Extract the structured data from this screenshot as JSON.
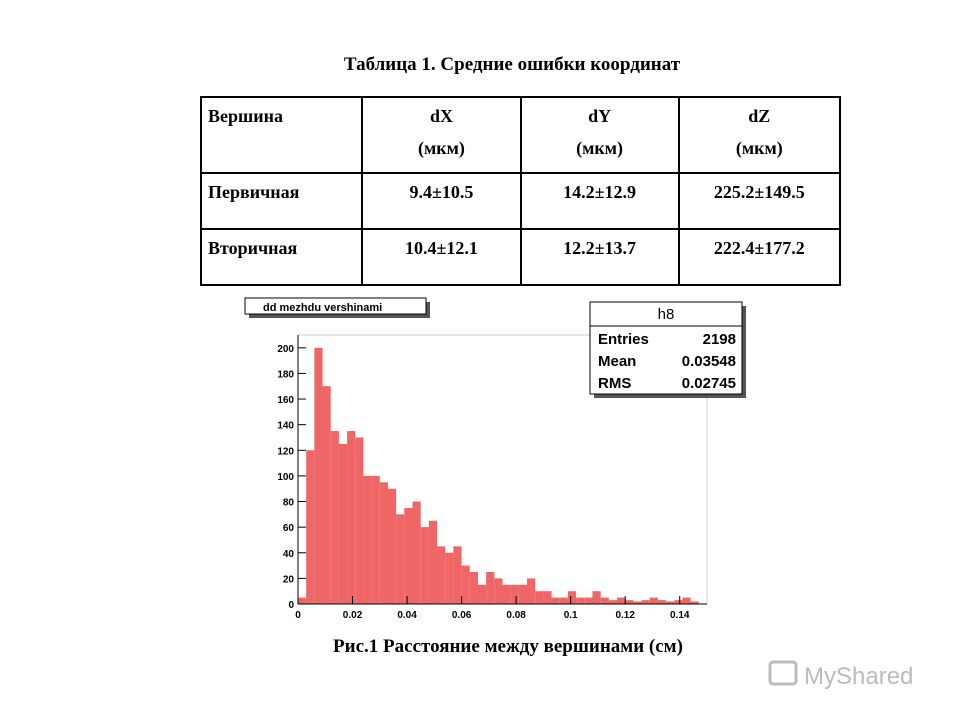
{
  "title": "Таблица 1. Средние ошибки координат",
  "table": {
    "header": [
      [
        "Вершина"
      ],
      [
        "dX",
        "(мкм)"
      ],
      [
        "dY",
        "(мкм)"
      ],
      [
        "dZ",
        "(мкм)"
      ]
    ],
    "rows": [
      [
        "Первичная",
        "9.4±10.5",
        "14.2±12.9",
        "225.2±149.5"
      ],
      [
        "Вторичная",
        "10.4±12.1",
        "12.2±13.7",
        "222.4±177.2"
      ]
    ]
  },
  "chart_data": {
    "type": "histogram",
    "title": "dd mezhdu vershinami",
    "color": "#ee6666",
    "bins": [
      0,
      0.003,
      0.006,
      0.009,
      0.012,
      0.015,
      0.018,
      0.021,
      0.024,
      0.027,
      0.03,
      0.033,
      0.036,
      0.039,
      0.042,
      0.045,
      0.048,
      0.051,
      0.054,
      0.057,
      0.06,
      0.063,
      0.066,
      0.069,
      0.072,
      0.075,
      0.078,
      0.081,
      0.084,
      0.087,
      0.09,
      0.093,
      0.096,
      0.099,
      0.102,
      0.105,
      0.108,
      0.111,
      0.114,
      0.117,
      0.12,
      0.123,
      0.126,
      0.129,
      0.132,
      0.135,
      0.138,
      0.141,
      0.144,
      0.147,
      0.15
    ],
    "counts": [
      5,
      120,
      200,
      170,
      135,
      125,
      135,
      130,
      100,
      100,
      95,
      90,
      70,
      75,
      80,
      60,
      65,
      45,
      40,
      45,
      30,
      25,
      15,
      25,
      20,
      15,
      15,
      15,
      20,
      10,
      10,
      5,
      5,
      10,
      5,
      5,
      10,
      5,
      3,
      5,
      3,
      2,
      3,
      5,
      3,
      2,
      3,
      5,
      2,
      0
    ],
    "xlim": [
      0,
      0.15
    ],
    "xticks": [
      0,
      0.02,
      0.04,
      0.06,
      0.08,
      0.1,
      0.12,
      0.14
    ],
    "ylim": [
      0,
      210
    ],
    "yticks": [
      0,
      20,
      40,
      60,
      80,
      100,
      120,
      140,
      160,
      180,
      200
    ],
    "stats": {
      "name": "h8",
      "rows": [
        {
          "label": "Entries",
          "value": 2198
        },
        {
          "label": "Mean",
          "value": 0.03548
        },
        {
          "label": "RMS",
          "value": 0.02745
        }
      ]
    }
  },
  "caption": "Рис.1 Расстояние между вершинами (см)",
  "watermark": "MyShared"
}
